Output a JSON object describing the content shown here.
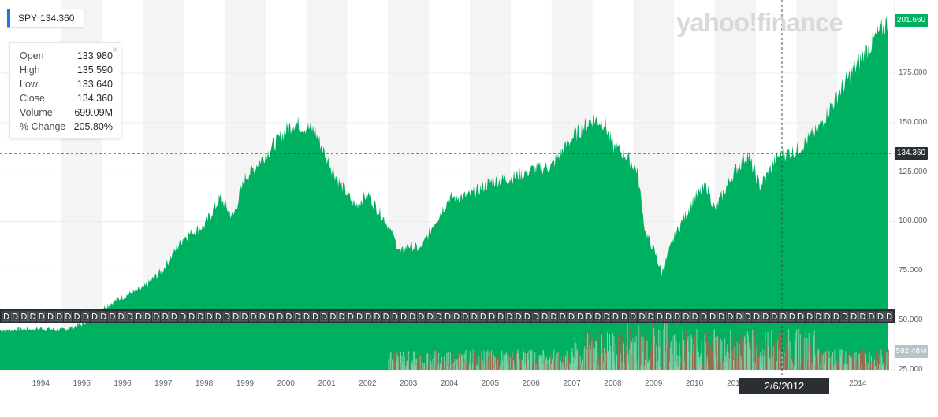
{
  "ticker": {
    "symbol": "SPY",
    "price": "134.360"
  },
  "tooltip": {
    "close_glyph": "×",
    "rows": [
      {
        "label": "Open",
        "value": "133.980"
      },
      {
        "label": "High",
        "value": "135.590"
      },
      {
        "label": "Low",
        "value": "133.640"
      },
      {
        "label": "Close",
        "value": "134.360"
      },
      {
        "label": "Volume",
        "value": "699.09M"
      },
      {
        "label": "% Change",
        "value": "205.80%"
      }
    ]
  },
  "watermark": "yahoo!finance",
  "crosshair": {
    "date": "2/6/2012",
    "price_label": "134.360",
    "price": 134.36
  },
  "last_price": {
    "label": "201.660",
    "value": 201.66
  },
  "volume_tag": {
    "label": "592.48M"
  },
  "colors": {
    "area": "#00b061",
    "area_dark": "#00a357",
    "band_light": "#f4f4f4",
    "vol_up": "#76d3a7",
    "vol_down": "#9a6a4f",
    "event_band": "#2b2f33",
    "price_tag": "#00b061",
    "crosshair_tag": "#2b2f33"
  },
  "chart_data": {
    "type": "area",
    "title": "",
    "xlabel": "",
    "ylabel": "",
    "ylim": [
      25,
      212
    ],
    "xlim": [
      1993.0,
      2014.9
    ],
    "y_ticks": [
      "25.000",
      "50.000",
      "75.000",
      "100.000",
      "125.000",
      "150.000",
      "175.000"
    ],
    "y_tick_values": [
      25,
      50,
      75,
      100,
      125,
      150,
      175
    ],
    "x_ticks": [
      "1994",
      "1995",
      "1996",
      "1997",
      "1998",
      "1999",
      "2000",
      "2001",
      "2002",
      "2003",
      "2004",
      "2005",
      "2006",
      "2007",
      "2008",
      "2009",
      "2010",
      "2011",
      "2012",
      "2013",
      "2014"
    ],
    "x_tick_values": [
      1994,
      1995,
      1996,
      1997,
      1998,
      1999,
      2000,
      2001,
      2002,
      2003,
      2004,
      2005,
      2006,
      2007,
      2008,
      2009,
      2010,
      2011,
      2012,
      2013,
      2014
    ],
    "series": [
      {
        "name": "SPY",
        "x": [
          1993.0,
          1994.0,
          1994.5,
          1995.0,
          1995.5,
          1996.0,
          1996.5,
          1997.0,
          1997.5,
          1998.0,
          1998.4,
          1998.7,
          1999.0,
          1999.5,
          2000.0,
          2000.2,
          2000.7,
          2001.0,
          2001.3,
          2001.7,
          2002.0,
          2002.5,
          2002.8,
          2003.0,
          2003.3,
          2003.6,
          2004.0,
          2004.5,
          2005.0,
          2005.5,
          2006.0,
          2006.5,
          2007.0,
          2007.3,
          2007.5,
          2007.8,
          2008.0,
          2008.3,
          2008.6,
          2008.8,
          2009.0,
          2009.2,
          2009.5,
          2010.0,
          2010.3,
          2010.5,
          2011.0,
          2011.3,
          2011.6,
          2011.8,
          2012.0,
          2012.1,
          2012.5,
          2013.0,
          2013.5,
          2014.0,
          2014.5,
          2014.75
        ],
        "values": [
          45,
          46,
          45,
          48,
          56,
          62,
          66,
          76,
          92,
          98,
          112,
          102,
          122,
          134,
          146,
          150,
          146,
          132,
          120,
          108,
          114,
          98,
          84,
          88,
          86,
          98,
          112,
          113,
          120,
          122,
          126,
          128,
          142,
          148,
          152,
          150,
          138,
          134,
          126,
          94,
          86,
          74,
          92,
          112,
          118,
          106,
          126,
          134,
          118,
          124,
          132,
          134,
          136,
          146,
          164,
          180,
          195,
          201.66
        ]
      }
    ],
    "volume": {
      "note_max": 800,
      "x_start": 1993.0,
      "x_end": 2014.75
    }
  }
}
